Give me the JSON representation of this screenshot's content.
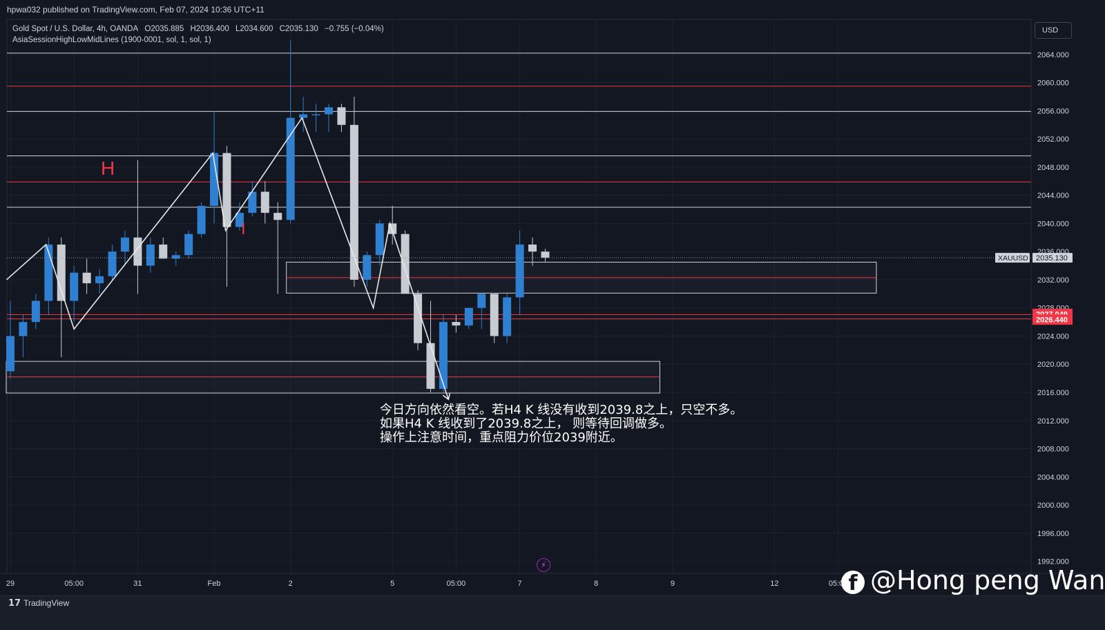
{
  "header": {
    "publish_line": "hpwa032 published on TradingView.com, Feb 07, 2024 10:36 UTC+11",
    "symbol_line": "Gold Spot / U.S. Dollar, 4h, OANDA",
    "ohlc": {
      "open": "O2035.885",
      "high": "H2036.400",
      "low": "L2034.600",
      "close": "C2035.130",
      "change": "−0.755 (−0.04%)"
    },
    "indicator_line": "AsiaSessionHighLowMidLines (1900-0001, sol, 1, sol, 1)"
  },
  "currency_button": "USD",
  "footer": {
    "logo_text": "TradingView"
  },
  "watermark": "@Hong peng Wang",
  "annotation_lines": [
    "今日方向依然看空。若H4 K 线没有收到2039.8之上，只空不多。",
    "如果H4 K 线收到了2039.8之上， 则等待回调做多。",
    "操作上注意时间，重点阻力价位2039附近。"
  ],
  "pattern_labels": {
    "h": "H",
    "i": "I"
  },
  "colors": {
    "background": "#131722",
    "bull": "#2f80d0",
    "bear": "#c8cbd2",
    "red_line": "#f23645",
    "white_line": "#d1d4dc"
  },
  "chart_data": {
    "type": "candlestick",
    "symbol": "XAUUSD",
    "timeframe": "4h",
    "ylim": [
      1990,
      2068
    ],
    "y_ticks": [
      1992,
      1996,
      2000,
      2004,
      2008,
      2012,
      2016,
      2020,
      2024,
      2028,
      2032,
      2036,
      2040,
      2044,
      2048,
      2052,
      2056,
      2060,
      2064
    ],
    "y_tick_labels": [
      "1992.000",
      "1996.000",
      "2000.000",
      "2004.000",
      "2008.000",
      "2012.000",
      "2016.000",
      "2020.000",
      "2024.000",
      "2028.000",
      "2032.000",
      "2036.000",
      "2040.000",
      "2044.000",
      "2048.000",
      "2052.000",
      "2056.000",
      "2060.000",
      "2064.000"
    ],
    "x_labels": [
      {
        "i": 0,
        "label": "29"
      },
      {
        "i": 5,
        "label": "05:00"
      },
      {
        "i": 10,
        "label": "31"
      },
      {
        "i": 16,
        "label": "Feb"
      },
      {
        "i": 22,
        "label": "2"
      },
      {
        "i": 30,
        "label": "5"
      },
      {
        "i": 35,
        "label": "05:00"
      },
      {
        "i": 40,
        "label": "7"
      },
      {
        "i": 46,
        "label": "8"
      },
      {
        "i": 52,
        "label": "9"
      },
      {
        "i": 60,
        "label": "12"
      },
      {
        "i": 65,
        "label": "05:00"
      }
    ],
    "candles": [
      {
        "o": 2019,
        "h": 2029,
        "l": 2018,
        "c": 2024
      },
      {
        "o": 2024,
        "h": 2027,
        "l": 2021,
        "c": 2026
      },
      {
        "o": 2026,
        "h": 2030,
        "l": 2025,
        "c": 2029
      },
      {
        "o": 2029,
        "h": 2038,
        "l": 2027,
        "c": 2037
      },
      {
        "o": 2037,
        "h": 2038,
        "l": 2021,
        "c": 2029
      },
      {
        "o": 2029,
        "h": 2034,
        "l": 2026,
        "c": 2033
      },
      {
        "o": 2033,
        "h": 2035,
        "l": 2030,
        "c": 2031.5
      },
      {
        "o": 2031.5,
        "h": 2033.5,
        "l": 2030,
        "c": 2032.5
      },
      {
        "o": 2032.5,
        "h": 2037,
        "l": 2032,
        "c": 2036
      },
      {
        "o": 2036,
        "h": 2039,
        "l": 2034,
        "c": 2038
      },
      {
        "o": 2038,
        "h": 2049,
        "l": 2030,
        "c": 2034
      },
      {
        "o": 2034,
        "h": 2038,
        "l": 2033,
        "c": 2037
      },
      {
        "o": 2037,
        "h": 2038,
        "l": 2035,
        "c": 2035
      },
      {
        "o": 2035,
        "h": 2036,
        "l": 2034,
        "c": 2035.5
      },
      {
        "o": 2035.5,
        "h": 2039,
        "l": 2035,
        "c": 2038.5
      },
      {
        "o": 2038.5,
        "h": 2043,
        "l": 2038,
        "c": 2042.5
      },
      {
        "o": 2042.5,
        "h": 2056,
        "l": 2040,
        "c": 2050
      },
      {
        "o": 2050,
        "h": 2051,
        "l": 2031,
        "c": 2039.5
      },
      {
        "o": 2039.5,
        "h": 2043,
        "l": 2039,
        "c": 2041.5
      },
      {
        "o": 2041.5,
        "h": 2046,
        "l": 2041,
        "c": 2044.5
      },
      {
        "o": 2044.5,
        "h": 2046,
        "l": 2040,
        "c": 2041.5
      },
      {
        "o": 2041.5,
        "h": 2043,
        "l": 2030,
        "c": 2040.5
      },
      {
        "o": 2040.5,
        "h": 2066,
        "l": 2040,
        "c": 2055
      },
      {
        "o": 2055,
        "h": 2058,
        "l": 2053,
        "c": 2055.5
      },
      {
        "o": 2055.5,
        "h": 2057,
        "l": 2053,
        "c": 2055.5
      },
      {
        "o": 2055.5,
        "h": 2057,
        "l": 2053,
        "c": 2056.5
      },
      {
        "o": 2056.5,
        "h": 2057,
        "l": 2053,
        "c": 2054
      },
      {
        "o": 2054,
        "h": 2058,
        "l": 2031,
        "c": 2032
      },
      {
        "o": 2032,
        "h": 2036,
        "l": 2031,
        "c": 2035.5
      },
      {
        "o": 2035.5,
        "h": 2040.5,
        "l": 2034,
        "c": 2040
      },
      {
        "o": 2040,
        "h": 2042.5,
        "l": 2037,
        "c": 2038.5
      },
      {
        "o": 2038.5,
        "h": 2039,
        "l": 2030,
        "c": 2030
      },
      {
        "o": 2030,
        "h": 2030.5,
        "l": 2022,
        "c": 2023
      },
      {
        "o": 2023,
        "h": 2029,
        "l": 2016,
        "c": 2016.5
      },
      {
        "o": 2016.5,
        "h": 2027,
        "l": 2016,
        "c": 2026
      },
      {
        "o": 2026,
        "h": 2027,
        "l": 2024.5,
        "c": 2025.5
      },
      {
        "o": 2025.5,
        "h": 2028,
        "l": 2025,
        "c": 2028
      },
      {
        "o": 2028,
        "h": 2030,
        "l": 2025,
        "c": 2030
      },
      {
        "o": 2030,
        "h": 2030,
        "l": 2023,
        "c": 2024
      },
      {
        "o": 2024,
        "h": 2030,
        "l": 2023,
        "c": 2029.5
      },
      {
        "o": 2029.5,
        "h": 2039,
        "l": 2027,
        "c": 2037
      },
      {
        "o": 2037,
        "h": 2038,
        "l": 2034,
        "c": 2036
      },
      {
        "o": 2036,
        "h": 2036.4,
        "l": 2034.6,
        "c": 2035.13
      }
    ],
    "horizontal_lines": [
      {
        "price": 2064.2,
        "color": "#d1d4dc"
      },
      {
        "price": 2059.5,
        "color": "#f23645"
      },
      {
        "price": 2055.9,
        "color": "#d1d4dc"
      },
      {
        "price": 2049.6,
        "color": "#d1d4dc"
      },
      {
        "price": 2045.9,
        "color": "#f23645"
      },
      {
        "price": 2042.3,
        "color": "#d1d4dc"
      },
      {
        "price": 2027.049,
        "color": "#f23645"
      },
      {
        "price": 2026.44,
        "color": "#f23645"
      }
    ],
    "zones": [
      {
        "i_start": 22,
        "i_end": 68,
        "top": 2034.5,
        "mid": 2032.3,
        "bottom": 2030.1
      },
      {
        "i_start": 0,
        "i_end": 51,
        "top": 2020.4,
        "mid": 2018.2,
        "bottom": 2015.9
      }
    ],
    "zigzag": [
      {
        "i": -0.3,
        "p": 2032.0
      },
      {
        "i": 2.8,
        "p": 2037.0
      },
      {
        "i": 5,
        "p": 2025.0
      },
      {
        "i": 15.9,
        "p": 2050.0
      },
      {
        "i": 16.9,
        "p": 2039.0
      },
      {
        "i": 22.9,
        "p": 2055.0
      },
      {
        "i": 28.5,
        "p": 2028.0
      },
      {
        "i": 29.8,
        "p": 2040.0
      },
      {
        "i": 34.4,
        "p": 2015.0
      }
    ],
    "price_labels": [
      {
        "price": 2035.13,
        "text": "2035.130",
        "symbol": "XAUUSD",
        "kind": "last"
      },
      {
        "price": 2027.049,
        "text": "2027.049",
        "kind": "red"
      },
      {
        "price": 2026.44,
        "text": "2026.440",
        "kind": "red"
      }
    ]
  }
}
